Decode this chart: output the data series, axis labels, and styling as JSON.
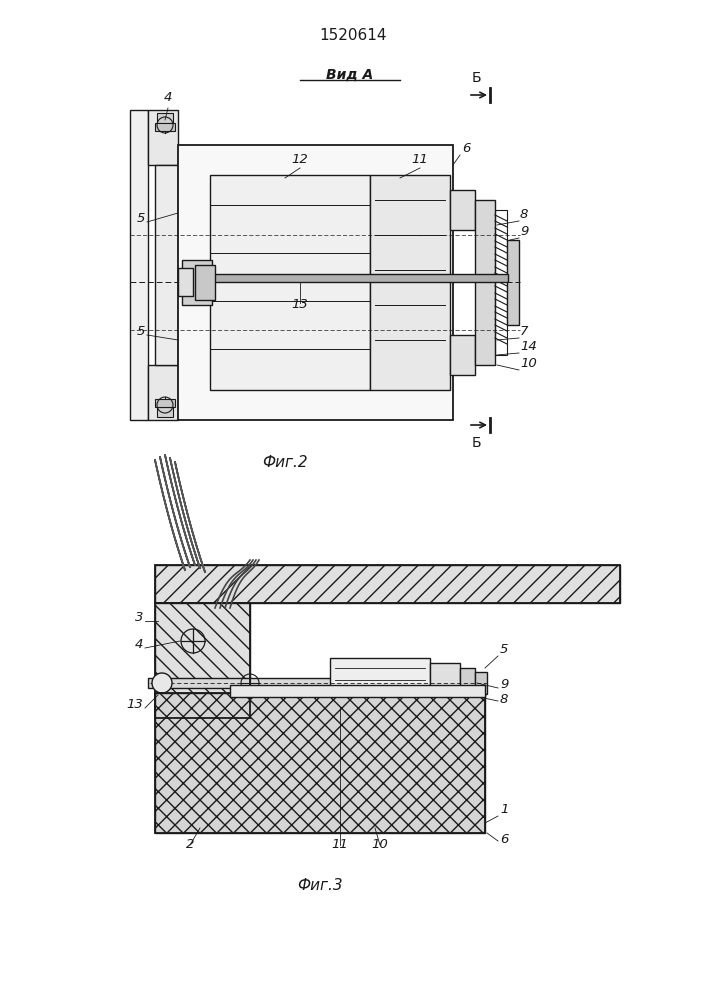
{
  "title": "1520614",
  "bg_color": "#ffffff",
  "lc": "#1a1a1a",
  "fig2_caption": "Фиг.2",
  "fig3_caption": "Фиг.3",
  "vid_a": "Вид А"
}
